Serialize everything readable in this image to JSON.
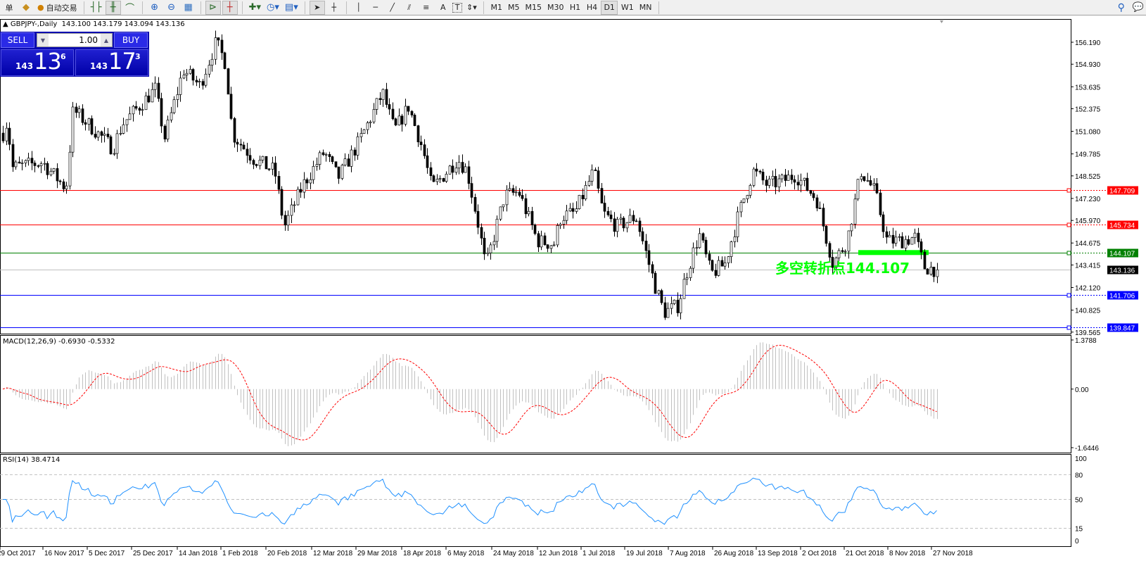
{
  "toolbar": {
    "items": [
      "单",
      "自动交易"
    ],
    "timeframes": [
      "M1",
      "M5",
      "M15",
      "M30",
      "H1",
      "H4",
      "D1",
      "W1",
      "MN"
    ],
    "active_timeframe": "D1",
    "icons": [
      "new-order-icon",
      "autotrading-icon",
      "bar-chart-icon",
      "candlestick-icon",
      "line-chart-icon",
      "zoom-in-icon",
      "zoom-out-icon",
      "tile-windows-icon",
      "chart-shift-icon",
      "autoscroll-icon",
      "indicators-icon",
      "periods-icon",
      "templates-icon",
      "cursor-icon",
      "crosshair-icon",
      "vertical-line-icon",
      "horizontal-line-icon",
      "trendline-icon",
      "equidistant-channel-icon",
      "fibonacci-icon",
      "text-icon",
      "text-label-icon",
      "arrows-icon",
      "search-icon",
      "chat-icon"
    ],
    "text_tool_label": "A",
    "text_label_tool_label": "T"
  },
  "header": {
    "symbol": "GBPJPY-,Daily",
    "ohlc": "143.100 143.179 143.094 143.136"
  },
  "trade_panel": {
    "sell_label": "SELL",
    "buy_label": "BUY",
    "lot": "1.00",
    "sell_price": {
      "prefix": "143",
      "big": "13",
      "sup": "6"
    },
    "buy_price": {
      "prefix": "143",
      "big": "17",
      "sup": "3"
    }
  },
  "annotation": {
    "text": "多空转折点144.107",
    "color": "#00ff00"
  },
  "colors": {
    "bull_body": "#ffffff",
    "bear_body": "#000000",
    "macd_hist": "#c0c0c0",
    "macd_signal": "#ff0000",
    "rsi": "#1e90ff",
    "support_zone": "#00ff00"
  },
  "chart_data": [
    {
      "type": "candlestick",
      "title": "GBPJPY-,Daily",
      "y_ticks": [
        "156.190",
        "154.930",
        "153.635",
        "152.375",
        "151.080",
        "149.785",
        "148.525",
        "147.230",
        "145.970",
        "144.675",
        "143.415",
        "142.120",
        "140.825",
        "139.565"
      ],
      "ylim": [
        139.565,
        156.19
      ],
      "x_ticks": [
        "29 Oct 2017",
        "16 Nov 2017",
        "5 Dec 2017",
        "25 Dec 2017",
        "14 Jan 2018",
        "1 Feb 2018",
        "20 Feb 2018",
        "12 Mar 2018",
        "29 Mar 2018",
        "18 Apr 2018",
        "6 May 2018",
        "24 May 2018",
        "12 Jun 2018",
        "1 Jul 2018",
        "19 Jul 2018",
        "7 Aug 2018",
        "26 Aug 2018",
        "13 Sep 2018",
        "2 Oct 2018",
        "21 Oct 2018",
        "8 Nov 2018",
        "27 Nov 2018"
      ],
      "close_approx": [
        [
          "2017-10-29",
          150.5
        ],
        [
          "2017-11-01",
          151.7
        ],
        [
          "2017-11-03",
          149.0
        ],
        [
          "2017-11-16",
          149.3
        ],
        [
          "2017-11-26",
          147.8
        ],
        [
          "2017-11-29",
          152.3
        ],
        [
          "2017-12-07",
          151.3
        ],
        [
          "2017-12-16",
          150.1
        ],
        [
          "2017-12-20",
          151.5
        ],
        [
          "2018-01-03",
          153.5
        ],
        [
          "2018-01-07",
          150.7
        ],
        [
          "2018-01-15",
          154.6
        ],
        [
          "2018-01-22",
          153.7
        ],
        [
          "2018-01-29",
          156.2
        ],
        [
          "2018-02-02",
          155.0
        ],
        [
          "2018-02-05",
          150.9
        ],
        [
          "2018-02-14",
          149.5
        ],
        [
          "2018-02-23",
          148.8
        ],
        [
          "2018-02-27",
          145.6
        ],
        [
          "2018-03-07",
          148.0
        ],
        [
          "2018-03-16",
          149.9
        ],
        [
          "2018-03-22",
          148.4
        ],
        [
          "2018-03-31",
          150.5
        ],
        [
          "2018-04-10",
          153.3
        ],
        [
          "2018-04-15",
          151.1
        ],
        [
          "2018-04-21",
          152.5
        ],
        [
          "2018-04-27",
          150.1
        ],
        [
          "2018-05-01",
          147.8
        ],
        [
          "2018-05-12",
          149.5
        ],
        [
          "2018-05-16",
          148.8
        ],
        [
          "2018-05-21",
          145.6
        ],
        [
          "2018-05-24",
          143.3
        ],
        [
          "2018-06-01",
          147.4
        ],
        [
          "2018-06-07",
          147.6
        ],
        [
          "2018-06-15",
          144.8
        ],
        [
          "2018-06-22",
          144.6
        ],
        [
          "2018-06-25",
          146.2
        ],
        [
          "2018-07-01",
          146.4
        ],
        [
          "2018-07-09",
          148.8
        ],
        [
          "2018-07-13",
          146.4
        ],
        [
          "2018-07-19",
          145.6
        ],
        [
          "2018-07-27",
          146.2
        ],
        [
          "2018-08-04",
          142.3
        ],
        [
          "2018-08-08",
          140.7
        ],
        [
          "2018-08-14",
          141.1
        ],
        [
          "2018-08-17",
          142.7
        ],
        [
          "2018-08-23",
          145.2
        ],
        [
          "2018-08-28",
          142.9
        ],
        [
          "2018-09-03",
          143.5
        ],
        [
          "2018-09-09",
          146.4
        ],
        [
          "2018-09-15",
          148.8
        ],
        [
          "2018-09-21",
          148.0
        ],
        [
          "2018-09-27",
          148.2
        ],
        [
          "2018-10-03",
          148.6
        ],
        [
          "2018-10-12",
          147.2
        ],
        [
          "2018-10-19",
          143.5
        ],
        [
          "2018-10-25",
          144.8
        ],
        [
          "2018-10-31",
          148.8
        ],
        [
          "2018-11-06",
          147.6
        ],
        [
          "2018-11-11",
          144.8
        ],
        [
          "2018-11-17",
          144.8
        ],
        [
          "2018-11-23",
          145.0
        ],
        [
          "2018-11-27",
          143.3
        ],
        [
          "2018-12-03",
          143.136
        ]
      ],
      "last_price": "143.136",
      "horizontal_lines": [
        {
          "price": "147.709",
          "color": "#ff0000"
        },
        {
          "price": "145.734",
          "color": "#ff0000"
        },
        {
          "price": "144.107",
          "color": "#008000"
        },
        {
          "price": "141.706",
          "color": "#0000ff"
        },
        {
          "price": "139.847",
          "color": "#0000ff"
        }
      ],
      "support_zone": {
        "price": 144.107,
        "from": "2018-10-30",
        "to": "2018-11-29"
      }
    },
    {
      "type": "bar+line",
      "title": "MACD(12,26,9) -0.6930 -0.5332",
      "y_ticks": [
        "1.3788",
        "0.00",
        "-1.6446"
      ],
      "ylim": [
        -1.6446,
        1.3788
      ],
      "series": [
        {
          "name": "MACD",
          "style": "histogram"
        },
        {
          "name": "Signal",
          "style": "dashed-line"
        }
      ]
    },
    {
      "type": "line",
      "title": "RSI(14) 38.4714",
      "y_ticks": [
        "100",
        "80",
        "50",
        "15",
        "0"
      ],
      "ylim": [
        0,
        100
      ],
      "levels": [
        80,
        50,
        15
      ]
    }
  ]
}
